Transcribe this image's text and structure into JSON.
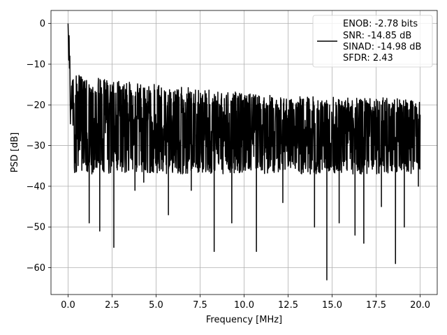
{
  "chart_data": {
    "type": "line",
    "title": "",
    "xlabel": "Frequency [MHz]",
    "ylabel": "PSD [dB]",
    "xlim": [
      -0.97,
      20.97
    ],
    "ylim": [
      -66.6,
      3.2
    ],
    "xticks": [
      0.0,
      2.5,
      5.0,
      7.5,
      10.0,
      12.5,
      15.0,
      17.5,
      20.0
    ],
    "xtick_labels": [
      "0.0",
      "2.5",
      "5.0",
      "7.5",
      "10.0",
      "12.5",
      "15.0",
      "17.5",
      "20.0"
    ],
    "yticks": [
      0,
      -10,
      -20,
      -30,
      -40,
      -50,
      -60
    ],
    "ytick_labels": [
      "0",
      "−10",
      "−20",
      "−30",
      "−40",
      "−50",
      "−60"
    ],
    "grid": true,
    "legend_position": "top-right",
    "series": [
      {
        "color": "#000000",
        "description": "dense noisy PSD trace from 0 to 20 MHz; peak 0 dB near 0 MHz, noise floor mostly between about -37 and -15 dB",
        "x_range": [
          0,
          20
        ],
        "peak": {
          "x": 0.0,
          "y": 0
        },
        "upper_envelope": [
          [
            0.1,
            -12
          ],
          [
            1.0,
            -13
          ],
          [
            2.5,
            -14
          ],
          [
            5.0,
            -15
          ],
          [
            7.5,
            -16
          ],
          [
            10.0,
            -17
          ],
          [
            12.5,
            -18
          ],
          [
            15.0,
            -18
          ],
          [
            17.5,
            -18
          ],
          [
            20.0,
            -19
          ]
        ],
        "lower_envelope": [
          [
            0.3,
            -37
          ],
          [
            5.0,
            -37
          ],
          [
            10.0,
            -37
          ],
          [
            15.0,
            -37
          ],
          [
            20.0,
            -37
          ]
        ],
        "deep_nulls": [
          [
            1.2,
            -49
          ],
          [
            1.8,
            -51
          ],
          [
            2.6,
            -55
          ],
          [
            3.8,
            -41
          ],
          [
            4.3,
            -39
          ],
          [
            5.7,
            -47
          ],
          [
            7.0,
            -41
          ],
          [
            8.3,
            -56
          ],
          [
            9.3,
            -49
          ],
          [
            10.7,
            -56
          ],
          [
            12.2,
            -44
          ],
          [
            14.0,
            -50
          ],
          [
            14.7,
            -63
          ],
          [
            15.4,
            -49
          ],
          [
            16.3,
            -52
          ],
          [
            16.8,
            -54
          ],
          [
            17.8,
            -45
          ],
          [
            18.6,
            -59
          ],
          [
            19.1,
            -50
          ],
          [
            19.9,
            -40
          ]
        ]
      }
    ],
    "legend": {
      "entries": [
        "ENOB: -2.78 bits",
        "SNR: -14.85 dB",
        "SINAD: -14.98 dB",
        "SFDR: 2.43"
      ]
    }
  }
}
